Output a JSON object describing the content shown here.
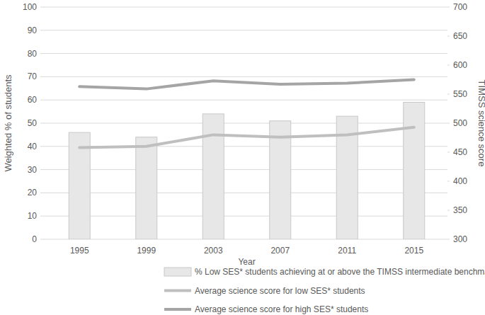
{
  "chart_data": {
    "type": "bar",
    "x_label": "Year",
    "y_label": "Weighted % of students",
    "y2_label": "TIMSS science score",
    "categories": [
      "1995",
      "1999",
      "2003",
      "2007",
      "2011",
      "2015"
    ],
    "series": [
      {
        "name": "% Low SES* students achieving at or above the TIMSS intermediate benchmark",
        "type": "bar",
        "color": "#e7e7e7",
        "values": [
          46,
          44,
          54,
          51,
          53,
          59
        ]
      },
      {
        "name": "Average science score for low SES* students",
        "type": "line",
        "axis": "y2",
        "color": "#bfbfbf",
        "values": [
          458,
          460,
          480,
          476,
          480,
          493
        ]
      },
      {
        "name": "Average science score for high SES* students",
        "type": "line",
        "axis": "y2",
        "color": "#a5a5a5",
        "values": [
          563,
          559,
          573,
          567,
          569,
          575
        ]
      }
    ],
    "ylim": [
      0,
      100
    ],
    "yticks": [
      0,
      10,
      20,
      30,
      40,
      50,
      60,
      70,
      80,
      90,
      100
    ],
    "y2lim": [
      300,
      700
    ],
    "y2ticks": [
      300,
      350,
      400,
      450,
      500,
      550,
      600,
      650,
      700
    ],
    "grid": true,
    "legend": "bottom"
  }
}
